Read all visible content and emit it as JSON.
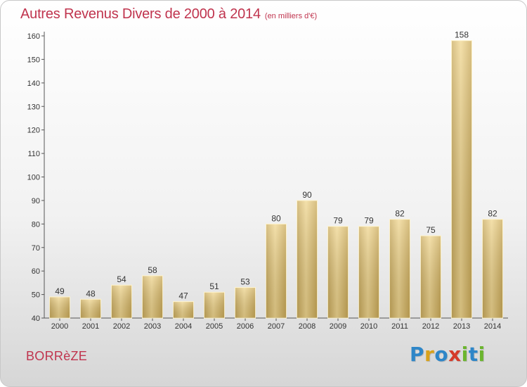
{
  "header": {
    "title": "Autres Revenus Divers de 2000 à 2014",
    "unit_note": "(en milliers d'€)"
  },
  "footer": {
    "commune": "BORRèZE",
    "brand": "Proxiti",
    "brand_letter_colors": [
      "#2e86c8",
      "#d8a21c",
      "#2e86c8",
      "#d53a2a",
      "#6bb52e",
      "#2e86c8",
      "#6bb52e"
    ]
  },
  "chart_data": {
    "type": "bar",
    "title": "Autres Revenus Divers de 2000 à 2014",
    "subtitle": "(en milliers d'€)",
    "categories": [
      "2000",
      "2001",
      "2002",
      "2003",
      "2004",
      "2005",
      "2006",
      "2007",
      "2008",
      "2009",
      "2010",
      "2011",
      "2012",
      "2013",
      "2014"
    ],
    "values": [
      49,
      48,
      54,
      58,
      47,
      51,
      53,
      80,
      90,
      79,
      79,
      82,
      75,
      158,
      82
    ],
    "xlabel": "",
    "ylabel": "",
    "ylim": [
      40,
      160
    ],
    "yticks": [
      40,
      50,
      60,
      70,
      80,
      90,
      100,
      110,
      120,
      130,
      140,
      150,
      160
    ],
    "grid": false,
    "data_labels": true,
    "bar_color": "#e8cb7e"
  }
}
